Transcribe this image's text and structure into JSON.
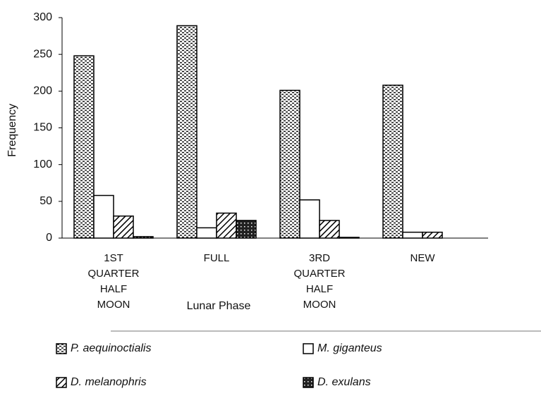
{
  "chart_data": {
    "type": "bar",
    "x_label": "Lunar Phase",
    "y_label": "Frequency",
    "categories": [
      "1ST QUARTER HALF MOON",
      "FULL",
      "3RD QUARTER HALF MOON",
      "NEW"
    ],
    "series": [
      {
        "name": "P. aequinoctialis",
        "color": "#000000",
        "pattern": "dotted",
        "values": [
          248,
          289,
          201,
          208
        ]
      },
      {
        "name": "M. giganteus",
        "color": "#000000",
        "pattern": "none",
        "values": [
          58,
          14,
          52,
          8
        ]
      },
      {
        "name": "D. melanophris",
        "color": "#000000",
        "pattern": "hatched",
        "values": [
          30,
          34,
          24,
          8
        ]
      },
      {
        "name": "D. exulans",
        "color": "#000000",
        "pattern": "checkered",
        "values": [
          2,
          24,
          1,
          0
        ]
      }
    ],
    "ylim": [
      0,
      300
    ],
    "yticks": [
      0,
      50,
      100,
      150,
      200,
      250,
      300
    ],
    "grid": false,
    "legend": "bottom"
  }
}
